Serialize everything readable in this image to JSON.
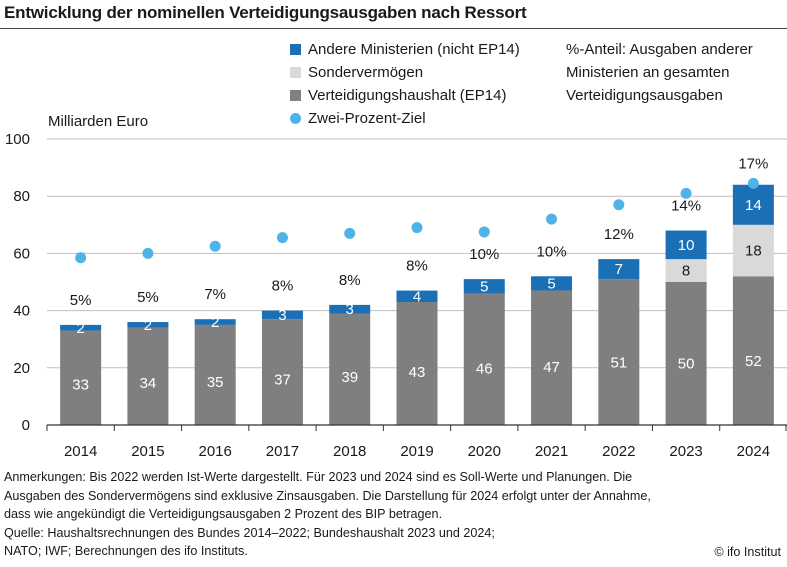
{
  "title": "Entwicklung der nominellen Verteidigungsausgaben nach Ressort",
  "colors": {
    "andere": "#1a6fb5",
    "sonder": "#d9d9d9",
    "haushalt": "#7f7f7f",
    "ziel": "#4fb3e8"
  },
  "legend": {
    "items": [
      {
        "label": "Andere Ministerien (nicht EP14)",
        "shape": "square",
        "color": "#1a6fb5"
      },
      {
        "label": "Sondervermögen",
        "shape": "square",
        "color": "#d9d9d9"
      },
      {
        "label": "Verteidigungshaushalt (EP14)",
        "shape": "square",
        "color": "#7f7f7f"
      },
      {
        "label": "Zwei-Prozent-Ziel",
        "shape": "dot",
        "color": "#4fb3e8"
      }
    ],
    "share_note": "%-Anteil: Ausgaben anderer Ministerien an gesamten Verteidigungsausgaben"
  },
  "chart_data": {
    "type": "bar",
    "stacked": true,
    "ylabel": "Milliarden Euro",
    "ylim": [
      0,
      100
    ],
    "yticks": [
      0,
      20,
      40,
      60,
      80,
      100
    ],
    "grid": true,
    "legend_position": "top-right",
    "categories": [
      "2014",
      "2015",
      "2016",
      "2017",
      "2018",
      "2019",
      "2020",
      "2021",
      "2022",
      "2023",
      "2024"
    ],
    "series": [
      {
        "name": "Verteidigungshaushalt (EP14)",
        "values": [
          33,
          34,
          35,
          37,
          39,
          43,
          46,
          47,
          51,
          50,
          52
        ]
      },
      {
        "name": "Sondervermögen",
        "values": [
          0,
          0,
          0,
          0,
          0,
          0,
          0,
          0,
          0,
          8,
          18
        ]
      },
      {
        "name": "Andere Ministerien (nicht EP14)",
        "values": [
          2,
          2,
          2,
          3,
          3,
          4,
          5,
          5,
          7,
          10,
          14
        ]
      }
    ],
    "zwei_prozent_ziel": {
      "name": "Zwei-Prozent-Ziel",
      "values": [
        58.5,
        60,
        62.5,
        65.5,
        67,
        69,
        67.5,
        72,
        77,
        81,
        84.5
      ]
    },
    "share_labels": [
      "5%",
      "5%",
      "7%",
      "8%",
      "8%",
      "8%",
      "10%",
      "10%",
      "12%",
      "14%",
      "17%"
    ]
  },
  "notes": [
    "Anmerkungen: Bis 2022 werden Ist-Werte dargestellt. Für 2023 und 2024 sind es Soll-Werte und Planungen. Die",
    "Ausgaben des Sondervermögens sind exklusive Zinsausgaben. Die Darstellung für 2024 erfolgt unter der Annahme,",
    "dass wie angekündigt die Verteidigungsausgaben 2 Prozent des BIP betragen.",
    "Quelle: Haushaltsrechnungen des Bundes 2014–2022; Bundeshaushalt 2023 und 2024;",
    "NATO; IWF; Berechnungen des ifo Instituts."
  ],
  "copyright": "© ifo Institut"
}
